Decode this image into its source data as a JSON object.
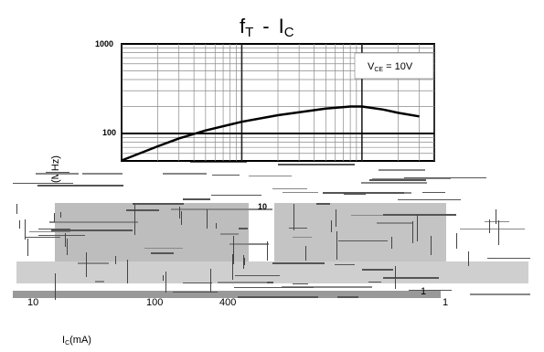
{
  "chart_data": {
    "type": "line",
    "title": {
      "main_f": "f",
      "sub_t": "T",
      "dash": "-",
      "main_i": "I",
      "sub_c": "C"
    },
    "ylabel": "(MHz)",
    "xlabel": {
      "main": "I",
      "sub": "C",
      "unit": "(mA)"
    },
    "legend": {
      "main": "V",
      "sub": "CE",
      "rest": " = 10V",
      "position": "top-right"
    },
    "xscale": "log",
    "yscale": "log",
    "xlim": [
      1,
      400
    ],
    "ylim": [
      10,
      1000
    ],
    "grid": true,
    "y_ticks": [
      "1000",
      "100"
    ],
    "x_tick_labels": [
      "10",
      "100",
      "400",
      "1",
      "1",
      "10"
    ],
    "series": [
      {
        "x": [
          1,
          2,
          3,
          5,
          10,
          20,
          50,
          80,
          100,
          150,
          200,
          300
        ],
        "y": [
          50,
          72,
          88,
          108,
          135,
          160,
          190,
          200,
          200,
          185,
          170,
          155
        ]
      }
    ]
  }
}
